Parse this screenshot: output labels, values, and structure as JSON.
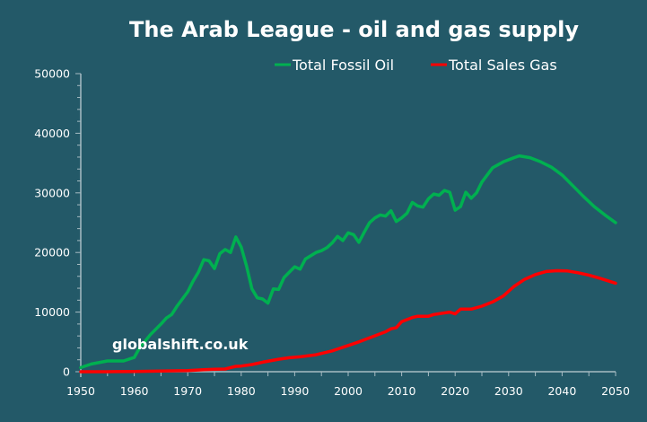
{
  "chart_data": {
    "type": "line",
    "title": "The Arab League - oil and gas supply",
    "xlabel": "",
    "ylabel": "",
    "xlim": [
      1950,
      2050
    ],
    "ylim": [
      0,
      50000
    ],
    "x_ticks": [
      1950,
      1960,
      1970,
      1980,
      1990,
      2000,
      2010,
      2020,
      2030,
      2040,
      2050
    ],
    "y_ticks": [
      0,
      10000,
      20000,
      30000,
      40000,
      50000
    ],
    "grid": false,
    "legend_position": "top-right",
    "watermark": "globalshift.co.uk",
    "series": [
      {
        "name": "Total Fossil Oil",
        "color": "#00b050",
        "points": [
          [
            1950,
            700
          ],
          [
            1952,
            1300
          ],
          [
            1955,
            1800
          ],
          [
            1958,
            1800
          ],
          [
            1960,
            2400
          ],
          [
            1961,
            4000
          ],
          [
            1963,
            6200
          ],
          [
            1965,
            8000
          ],
          [
            1966,
            9000
          ],
          [
            1967,
            9600
          ],
          [
            1968,
            11000
          ],
          [
            1970,
            13400
          ],
          [
            1971,
            15200
          ],
          [
            1972,
            16700
          ],
          [
            1973,
            18800
          ],
          [
            1974,
            18600
          ],
          [
            1975,
            17300
          ],
          [
            1976,
            19800
          ],
          [
            1977,
            20500
          ],
          [
            1978,
            20000
          ],
          [
            1979,
            22600
          ],
          [
            1980,
            20900
          ],
          [
            1981,
            17700
          ],
          [
            1982,
            13900
          ],
          [
            1983,
            12400
          ],
          [
            1984,
            12200
          ],
          [
            1985,
            11500
          ],
          [
            1986,
            13900
          ],
          [
            1987,
            13800
          ],
          [
            1988,
            15800
          ],
          [
            1989,
            16700
          ],
          [
            1990,
            17600
          ],
          [
            1991,
            17200
          ],
          [
            1992,
            18900
          ],
          [
            1994,
            20000
          ],
          [
            1995,
            20300
          ],
          [
            1996,
            20800
          ],
          [
            1997,
            21600
          ],
          [
            1998,
            22700
          ],
          [
            1999,
            22000
          ],
          [
            2000,
            23300
          ],
          [
            2001,
            23000
          ],
          [
            2002,
            21700
          ],
          [
            2003,
            23400
          ],
          [
            2004,
            25000
          ],
          [
            2005,
            25800
          ],
          [
            2006,
            26300
          ],
          [
            2007,
            26100
          ],
          [
            2008,
            27000
          ],
          [
            2009,
            25200
          ],
          [
            2010,
            25800
          ],
          [
            2011,
            26600
          ],
          [
            2012,
            28400
          ],
          [
            2013,
            27800
          ],
          [
            2014,
            27600
          ],
          [
            2015,
            29000
          ],
          [
            2016,
            29800
          ],
          [
            2017,
            29600
          ],
          [
            2018,
            30400
          ],
          [
            2019,
            30100
          ],
          [
            2020,
            27100
          ],
          [
            2021,
            27700
          ],
          [
            2022,
            30100
          ],
          [
            2023,
            29100
          ],
          [
            2024,
            30000
          ],
          [
            2025,
            31800
          ],
          [
            2027,
            34200
          ],
          [
            2029,
            35200
          ],
          [
            2031,
            35900
          ],
          [
            2032,
            36200
          ],
          [
            2034,
            35900
          ],
          [
            2036,
            35200
          ],
          [
            2038,
            34300
          ],
          [
            2040,
            33000
          ],
          [
            2042,
            31200
          ],
          [
            2044,
            29400
          ],
          [
            2046,
            27700
          ],
          [
            2048,
            26300
          ],
          [
            2050,
            25000
          ]
        ]
      },
      {
        "name": "Total Sales Gas",
        "color": "#ff0000",
        "points": [
          [
            1950,
            0
          ],
          [
            1955,
            0
          ],
          [
            1960,
            50
          ],
          [
            1965,
            100
          ],
          [
            1970,
            200
          ],
          [
            1973,
            350
          ],
          [
            1975,
            400
          ],
          [
            1977,
            450
          ],
          [
            1978,
            700
          ],
          [
            1979,
            900
          ],
          [
            1980,
            950
          ],
          [
            1982,
            1200
          ],
          [
            1984,
            1600
          ],
          [
            1987,
            2100
          ],
          [
            1989,
            2350
          ],
          [
            1991,
            2500
          ],
          [
            1994,
            2850
          ],
          [
            1997,
            3500
          ],
          [
            2000,
            4400
          ],
          [
            2002,
            5000
          ],
          [
            2004,
            5700
          ],
          [
            2007,
            6700
          ],
          [
            2008,
            7200
          ],
          [
            2009,
            7400
          ],
          [
            2010,
            8400
          ],
          [
            2012,
            9100
          ],
          [
            2013,
            9300
          ],
          [
            2015,
            9300
          ],
          [
            2016,
            9600
          ],
          [
            2019,
            10000
          ],
          [
            2020,
            9700
          ],
          [
            2021,
            10500
          ],
          [
            2023,
            10500
          ],
          [
            2025,
            11000
          ],
          [
            2027,
            11700
          ],
          [
            2029,
            12700
          ],
          [
            2031,
            14300
          ],
          [
            2033,
            15500
          ],
          [
            2035,
            16300
          ],
          [
            2037,
            16800
          ],
          [
            2039,
            16950
          ],
          [
            2041,
            16900
          ],
          [
            2043,
            16600
          ],
          [
            2045,
            16200
          ],
          [
            2047,
            15700
          ],
          [
            2050,
            14850
          ]
        ]
      }
    ]
  }
}
